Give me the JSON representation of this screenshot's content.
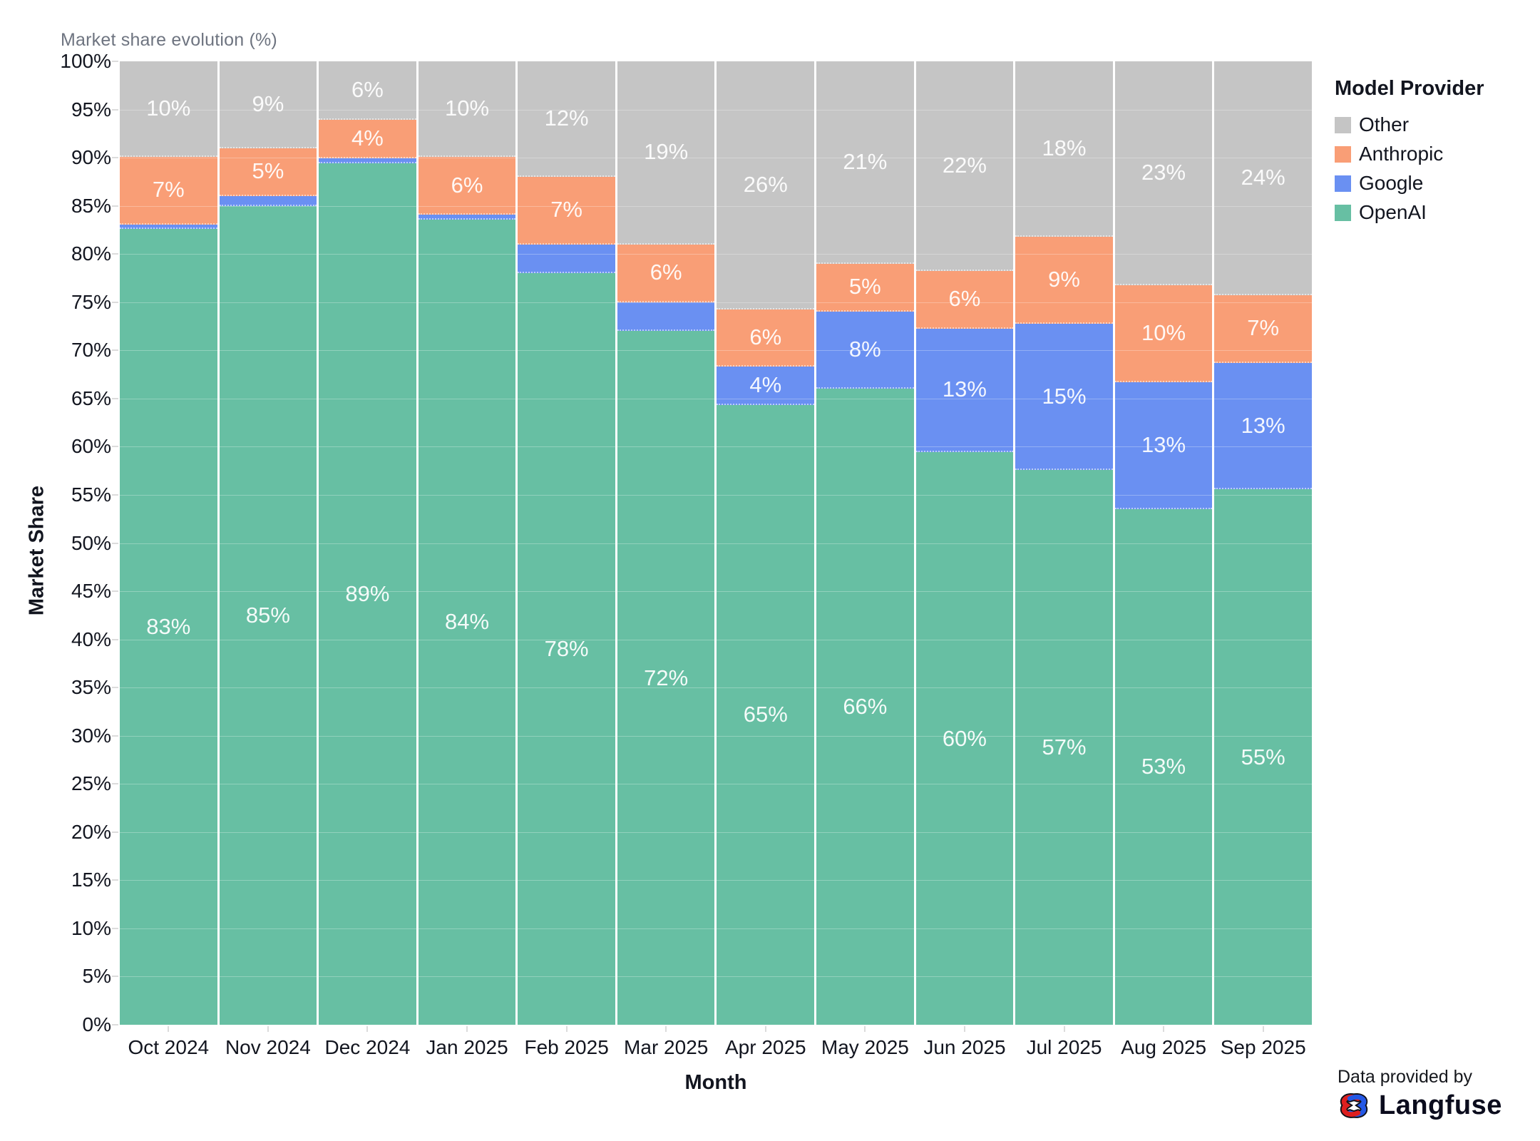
{
  "title": "Market share evolution (%)",
  "axes": {
    "y_label": "Market Share",
    "x_label": "Month",
    "y_ticks": [
      "100%",
      "95%",
      "90%",
      "85%",
      "80%",
      "75%",
      "70%",
      "65%",
      "60%",
      "55%",
      "50%",
      "45%",
      "40%",
      "35%",
      "30%",
      "25%",
      "20%",
      "15%",
      "10%",
      "5%",
      "0%"
    ]
  },
  "legend": {
    "title": "Model Provider",
    "items": [
      {
        "label": "Other",
        "color": "#c5c5c5"
      },
      {
        "label": "Anthropic",
        "color": "#f99e76"
      },
      {
        "label": "Google",
        "color": "#6a90f2"
      },
      {
        "label": "OpenAI",
        "color": "#67bfa3"
      }
    ]
  },
  "footer": {
    "provided_by": "Data provided by",
    "brand": "Langfuse"
  },
  "chart_data": {
    "type": "bar",
    "stacked": true,
    "title": "Market share evolution (%)",
    "xlabel": "Month",
    "ylabel": "Market Share",
    "ylim": [
      0,
      100
    ],
    "ytick_step": 5,
    "value_unit": "%",
    "legend_position": "right",
    "legend_title": "Model Provider",
    "stack_order_bottom_to_top": [
      "OpenAI",
      "Google",
      "Anthropic",
      "Other"
    ],
    "categories": [
      "Oct 2024",
      "Nov 2024",
      "Dec 2024",
      "Jan 2025",
      "Feb 2025",
      "Mar 2025",
      "Apr 2025",
      "May 2025",
      "Jun 2025",
      "Jul 2025",
      "Aug 2025",
      "Sep 2025"
    ],
    "series": [
      {
        "name": "OpenAI",
        "color": "#67bfa3",
        "values": [
          83,
          85,
          89,
          84,
          78,
          72,
          65,
          66,
          60,
          57,
          53,
          55
        ],
        "labels": [
          "83%",
          "85%",
          "89%",
          "84%",
          "78%",
          "72%",
          "65%",
          "66%",
          "60%",
          "57%",
          "53%",
          "55%"
        ]
      },
      {
        "name": "Google",
        "color": "#6a90f2",
        "values": [
          0.5,
          1,
          0.5,
          0.5,
          3,
          3,
          4,
          8,
          13,
          15,
          13,
          13
        ],
        "labels": [
          null,
          null,
          null,
          null,
          null,
          null,
          "4%",
          "8%",
          "13%",
          "15%",
          "13%",
          "13%"
        ]
      },
      {
        "name": "Anthropic",
        "color": "#f99e76",
        "values": [
          7,
          5,
          4,
          6,
          7,
          6,
          6,
          5,
          6,
          9,
          10,
          7
        ],
        "labels": [
          "7%",
          "5%",
          "4%",
          "6%",
          "7%",
          "6%",
          "6%",
          "5%",
          "6%",
          "9%",
          "10%",
          "7%"
        ]
      },
      {
        "name": "Other",
        "color": "#c5c5c5",
        "values": [
          10,
          9,
          6,
          10,
          12,
          19,
          26,
          21,
          22,
          18,
          23,
          24
        ],
        "labels": [
          "10%",
          "9%",
          "6%",
          "10%",
          "12%",
          "19%",
          "26%",
          "21%",
          "22%",
          "18%",
          "23%",
          "24%"
        ]
      }
    ]
  }
}
